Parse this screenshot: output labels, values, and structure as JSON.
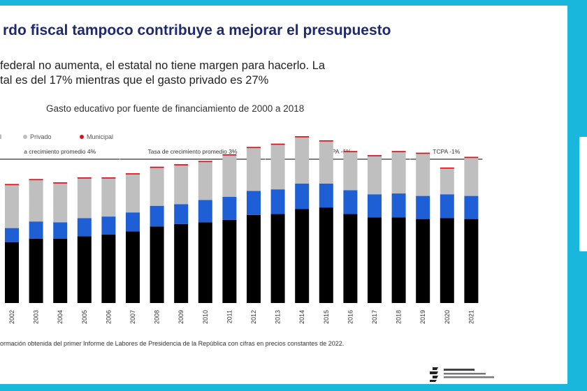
{
  "slide": {
    "title": "rdo fiscal tampoco contribuye a mejorar el presupuesto",
    "subtitle_line_1": "federal no aumenta, el estatal no tiene margen para hacerlo. La",
    "subtitle_line_2": "tal es del 17%  mientras que el gasto privado es 27%",
    "footnote": "ormación obtenida del primer Informe de Labores de Presidencia de la República con cifras en precios constantes de 2022."
  },
  "colors": {
    "frame": "#19b7dc",
    "title_text": "#1e2a6b",
    "federal": "#000000",
    "estatal": "#1f5fd6",
    "privado": "#bfbfbf",
    "municipal": "#d9131b"
  },
  "chart_data": {
    "type": "bar",
    "stacked": true,
    "title": "Gasto educativo por fuente de financiamiento de 2000 a 2018",
    "categories": [
      "2002",
      "2003",
      "2004",
      "2005",
      "2006",
      "2007",
      "2008",
      "2009",
      "2010",
      "2011",
      "2012",
      "2013",
      "2014",
      "2015",
      "2016",
      "2017",
      "2018",
      "2019",
      "2020",
      "2021"
    ],
    "series": [
      {
        "key": "federal",
        "color": "#000000",
        "values": [
          74,
          78,
          78,
          81,
          83,
          87,
          93,
          96,
          98,
          101,
          107,
          108,
          114,
          116,
          108,
          104,
          104,
          102,
          103,
          102
        ]
      },
      {
        "key": "estatal",
        "color": "#1f5fd6",
        "values": [
          17,
          21,
          20,
          22,
          22,
          23,
          25,
          24,
          27,
          28,
          29,
          30,
          31,
          29,
          29,
          28,
          29,
          28,
          29,
          28
        ]
      },
      {
        "name": "Privado",
        "key": "privado",
        "color": "#bfbfbf",
        "values": [
          52,
          50,
          47,
          48,
          46,
          46,
          46,
          47,
          46,
          50,
          52,
          54,
          56,
          51,
          46,
          46,
          50,
          51,
          31,
          46
        ]
      },
      {
        "name": "Municipal",
        "key": "municipal",
        "color": "#d9131b",
        "values": [
          1.5,
          1.5,
          1.5,
          1.5,
          1.5,
          1.5,
          1.5,
          1.5,
          1.5,
          1.5,
          1.5,
          1.5,
          1.5,
          1.5,
          1.5,
          1.5,
          1.5,
          1.5,
          1.5,
          1.5
        ]
      }
    ],
    "legend": {
      "position": "top-left"
    },
    "legend_entries": [
      "l",
      "Privado",
      "Municipal"
    ],
    "ylim": [
      0,
      200
    ],
    "grid": false,
    "period_annotations": [
      {
        "label": "a crecimiento promedio 4%",
        "from": "2002",
        "to": "2006"
      },
      {
        "label": "Tasa de crecimiento promedio 3%",
        "from": "2007",
        "to": "2012"
      },
      {
        "label": "TCPA -1%",
        "from": "2013",
        "to": "2018"
      },
      {
        "label": "TCPA -1%",
        "from": "2019",
        "to": "2021"
      }
    ]
  }
}
